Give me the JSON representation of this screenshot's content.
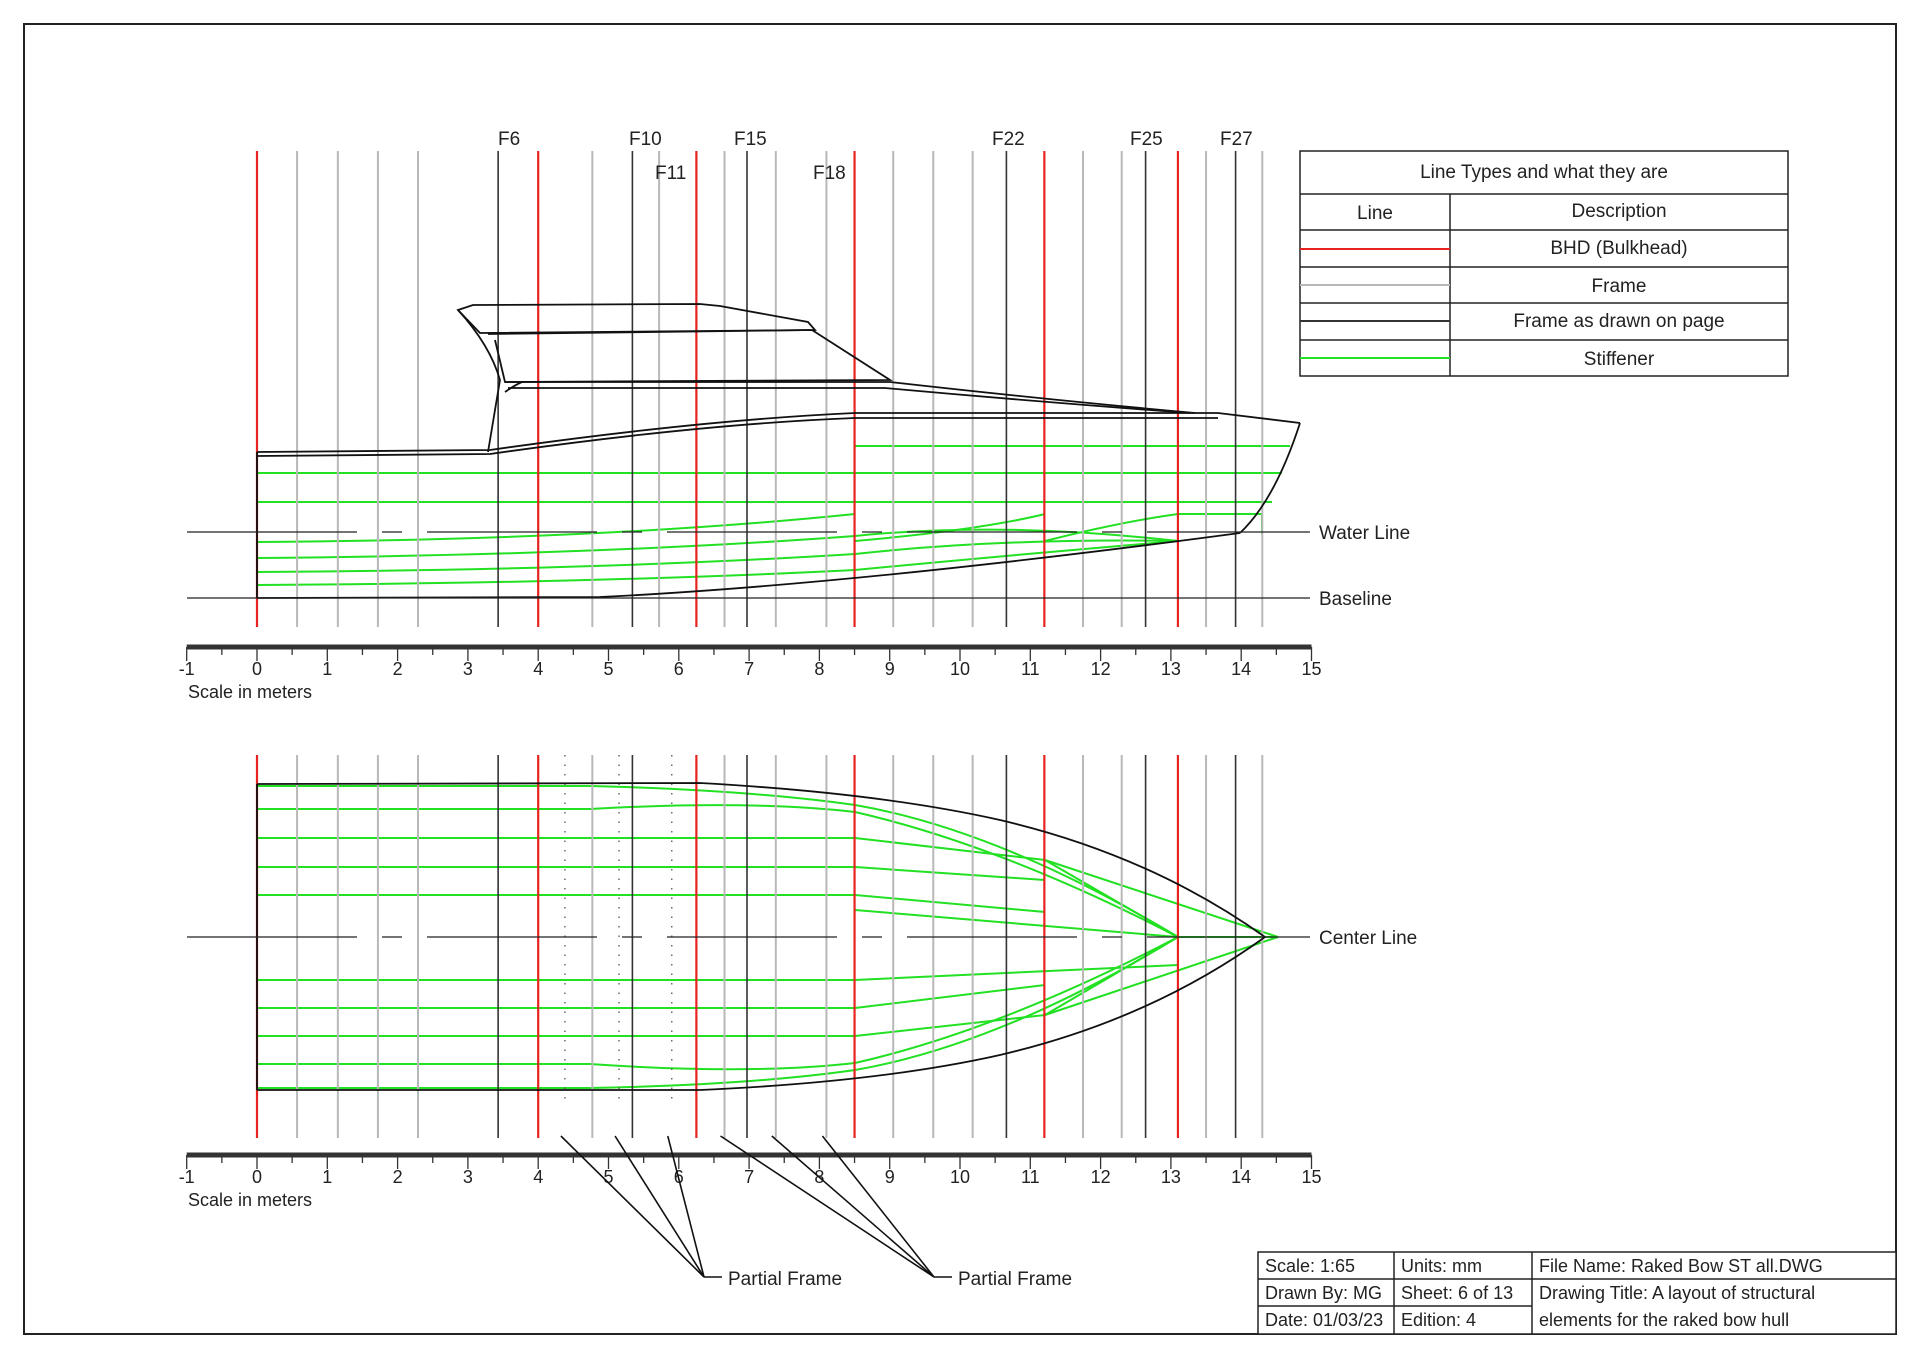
{
  "colors": {
    "bulkhead": "#e8231f",
    "frame": "#b8b8b8",
    "frame_drawn": "#333333",
    "stiffener": "#22e022",
    "hull": "#111111",
    "border": "#222222"
  },
  "frame_labels_top": [
    "F6",
    "F10",
    "F15",
    "F22",
    "F25",
    "F27"
  ],
  "frame_labels_second": [
    "F11",
    "F18"
  ],
  "reference_lines": {
    "water_line": "Water Line",
    "baseline": "Baseline",
    "center_line": "Center Line"
  },
  "scale": {
    "ticks": [
      "-1",
      "0",
      "1",
      "2",
      "3",
      "4",
      "5",
      "6",
      "7",
      "8",
      "9",
      "10",
      "11",
      "12",
      "13",
      "14",
      "15"
    ],
    "caption": "Scale in meters"
  },
  "structure_meters": {
    "bulkheads": [
      0,
      4,
      6.25,
      8.5,
      11.2,
      13.1
    ],
    "frames": [
      0.57,
      1.15,
      1.72,
      2.29,
      4.77,
      5.72,
      6.65,
      7.38,
      8.1,
      9.05,
      9.62,
      10.18,
      11.75,
      12.3,
      13.5,
      14.3
    ],
    "frames_drawn": [
      3.43,
      5.34,
      6.97,
      10.66,
      12.64,
      13.92
    ],
    "partial_frames_profile": [
      4.38,
      5.15,
      5.72,
      6.65,
      7.38,
      8.1
    ],
    "partial_frames_plan_dotted": [
      4.38,
      5.15,
      5.9
    ]
  },
  "partial_frame_label": "Partial Frame",
  "legend": {
    "title": "Line Types and what they are",
    "col_line": "Line",
    "col_description": "Description",
    "rows": [
      {
        "description": "BHD (Bulkhead)",
        "color": "#e8231f"
      },
      {
        "description": "Frame",
        "color": "#b8b8b8"
      },
      {
        "description": "Frame as drawn on page",
        "color": "#333333"
      },
      {
        "description": "Stiffener",
        "color": "#22e022"
      }
    ]
  },
  "title_block": {
    "scale": "Scale: 1:65",
    "units": "Units: mm",
    "file_name": "File Name: Raked Bow ST all.DWG",
    "drawn_by": "Drawn By: MG",
    "sheet": "Sheet: 6 of 13",
    "drawing_title_1": "Drawing Title: A layout of structural",
    "drawing_title_2": "elements for the raked bow hull",
    "date": "Date: 01/03/23",
    "edition": "Edition: 4"
  }
}
